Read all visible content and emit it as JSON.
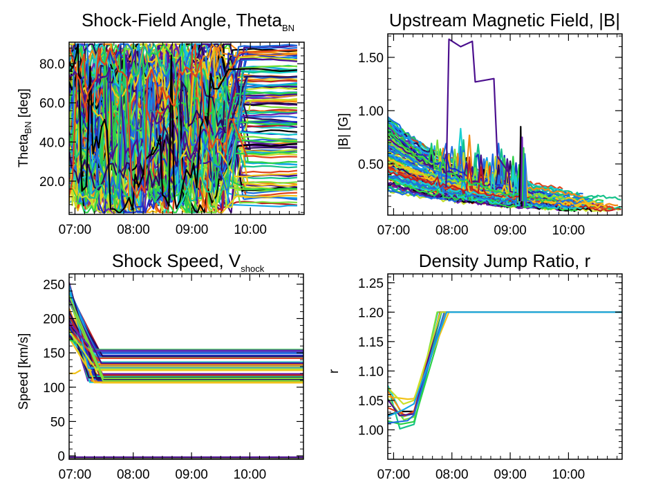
{
  "palette": [
    "#2a0a5e",
    "#4b0f8e",
    "#6a1fb0",
    "#1d2fc8",
    "#1e6ee0",
    "#14a6e6",
    "#19d0d0",
    "#15c28a",
    "#2bd148",
    "#7be03a",
    "#c9e02a",
    "#f2c318",
    "#f38a13",
    "#e0461a",
    "#c01f1f",
    "#000000"
  ],
  "chart_data": [
    {
      "id": "theta",
      "type": "line",
      "title": "Shock-Field Angle, Theta",
      "title_sub": "BN",
      "ylabel": "Theta",
      "ylabel_sub": "BN",
      "ylabel_unit": " [deg]",
      "xlim": [
        6.9,
        10.92
      ],
      "ylim": [
        3,
        91
      ],
      "x_ticks": [
        7,
        8,
        9,
        10
      ],
      "x_tick_labels": [
        "07:00",
        "08:00",
        "09:00",
        "10:00"
      ],
      "y_ticks": [
        20,
        40,
        60,
        80
      ],
      "y_tick_labels": [
        "20.0",
        "40.0",
        "60.0",
        "80.0"
      ],
      "grid": false,
      "series_count": 120,
      "note_value": "dense multi-series (~120 field lines); values scatter 5-90 deg before ~09:30, then settle into steady bands 10-90 deg"
    },
    {
      "id": "bmag",
      "type": "line",
      "title": "Upstream Magnetic Field, |B|",
      "ylabel": "|B| [G]",
      "xlim": [
        6.9,
        10.92
      ],
      "ylim": [
        0.02,
        1.72
      ],
      "x_ticks": [
        7,
        8,
        9,
        10
      ],
      "x_tick_labels": [
        "07:00",
        "08:00",
        "09:00",
        "10:00"
      ],
      "y_ticks": [
        0.5,
        1.0,
        1.5
      ],
      "y_tick_labels": [
        "0.50",
        "1.00",
        "1.50"
      ],
      "grid": false,
      "series_count": 100,
      "highlight_series": {
        "x": [
          7.9,
          7.95,
          8.15,
          8.35,
          8.4,
          8.72,
          8.78,
          9.0
        ],
        "y": [
          0.28,
          1.67,
          1.6,
          1.65,
          1.27,
          1.3,
          0.57,
          0.4
        ]
      },
      "note_value": "field strength decays from ~0.3-1.0 G at 07:00 to ~0.05-0.15 G after 10:00; spike near 09:15"
    },
    {
      "id": "vshock",
      "type": "line",
      "title": "Shock Speed, V",
      "title_sub": "shock",
      "ylabel": "Speed [km/s]",
      "xlim": [
        6.9,
        10.92
      ],
      "ylim": [
        -5,
        265
      ],
      "x_ticks": [
        7,
        8,
        9,
        10
      ],
      "x_tick_labels": [
        "07:00",
        "08:00",
        "09:00",
        "10:00"
      ],
      "y_ticks": [
        0,
        50,
        100,
        150,
        200,
        250
      ],
      "y_tick_labels": [
        "0",
        "50",
        "100",
        "150",
        "200",
        "250"
      ],
      "grid": false,
      "series_count": 60,
      "note_value": "starts 170-250 km/s at 07:00, drops to flat plateaus 105-155 km/s by ~07:25; a zero-speed band along the bottom"
    },
    {
      "id": "ratio",
      "type": "line",
      "title": "Density Jump Ratio, r",
      "ylabel": "r",
      "xlim": [
        6.9,
        10.92
      ],
      "ylim": [
        0.95,
        1.265
      ],
      "x_ticks": [
        7,
        8,
        9,
        10
      ],
      "x_tick_labels": [
        "07:00",
        "08:00",
        "09:00",
        "10:00"
      ],
      "y_ticks": [
        1.0,
        1.05,
        1.1,
        1.15,
        1.2,
        1.25
      ],
      "y_tick_labels": [
        "1.00",
        "1.05",
        "1.10",
        "1.15",
        "1.20",
        "1.25"
      ],
      "grid": false,
      "series_count": 12,
      "note_value": "ratio ~1.0-1.10 near 07:00-07:20, rises to a constant 1.20 from ~07:45 onward"
    }
  ]
}
